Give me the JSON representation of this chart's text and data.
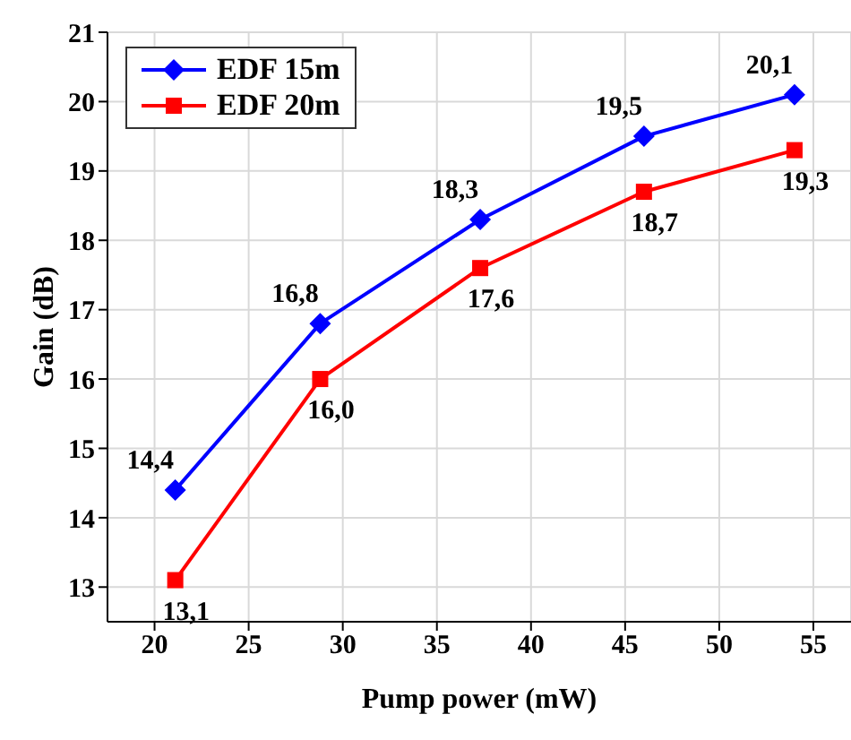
{
  "chart_data": {
    "type": "line",
    "xlabel": "Pump power (mW)",
    "ylabel": "Gain (dB)",
    "xlim": [
      17.5,
      57
    ],
    "xticks": [
      20,
      25,
      30,
      35,
      40,
      45,
      50,
      55
    ],
    "ylim": [
      12.5,
      21
    ],
    "yticks": [
      13,
      14,
      15,
      16,
      17,
      18,
      19,
      20,
      21
    ],
    "grid": true,
    "legend": "top left",
    "series": [
      {
        "name": "EDF 15m",
        "color": "#0000ff",
        "marker": "diamond",
        "x": [
          21.1,
          28.8,
          37.3,
          46.0,
          54.0
        ],
        "values": [
          14.4,
          16.8,
          18.3,
          19.5,
          20.1
        ],
        "value_labels": [
          "14,4",
          "16,8",
          "18,3",
          "19,5",
          "20,1"
        ]
      },
      {
        "name": "EDF 20m",
        "color": "#ff0000",
        "marker": "square",
        "x": [
          21.1,
          28.8,
          37.3,
          46.0,
          54.0
        ],
        "values": [
          13.1,
          16.0,
          17.6,
          18.7,
          19.3
        ],
        "value_labels": [
          "13,1",
          "16,0",
          "17,6",
          "18,7",
          "19,3"
        ]
      }
    ]
  }
}
